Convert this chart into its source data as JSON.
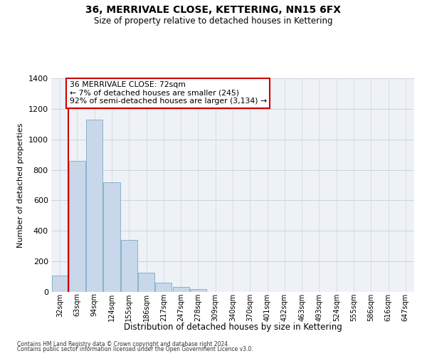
{
  "title1": "36, MERRIVALE CLOSE, KETTERING, NN15 6FX",
  "title2": "Size of property relative to detached houses in Kettering",
  "xlabel": "Distribution of detached houses by size in Kettering",
  "ylabel": "Number of detached properties",
  "bar_labels": [
    "32sqm",
    "63sqm",
    "94sqm",
    "124sqm",
    "155sqm",
    "186sqm",
    "217sqm",
    "247sqm",
    "278sqm",
    "309sqm",
    "340sqm",
    "370sqm",
    "401sqm",
    "432sqm",
    "463sqm",
    "493sqm",
    "524sqm",
    "555sqm",
    "586sqm",
    "616sqm",
    "647sqm"
  ],
  "bar_values": [
    107,
    857,
    1130,
    720,
    343,
    128,
    62,
    33,
    18,
    0,
    0,
    0,
    0,
    0,
    0,
    0,
    0,
    0,
    0,
    0,
    0
  ],
  "bar_color": "#c8d8ea",
  "bar_edge_color": "#7baac8",
  "vline_x": 0.5,
  "vline_color": "#cc0000",
  "annotation_line1": "36 MERRIVALE CLOSE: 72sqm",
  "annotation_line2": "← 7% of detached houses are smaller (245)",
  "annotation_line3": "92% of semi-detached houses are larger (3,134) →",
  "annotation_box_color": "white",
  "annotation_box_edge": "#cc0000",
  "ylim": [
    0,
    1400
  ],
  "yticks": [
    0,
    200,
    400,
    600,
    800,
    1000,
    1200,
    1400
  ],
  "footnote1": "Contains HM Land Registry data © Crown copyright and database right 2024.",
  "footnote2": "Contains public sector information licensed under the Open Government Licence v3.0.",
  "grid_color": "#c8d4e0",
  "background_color": "#eef2f7"
}
